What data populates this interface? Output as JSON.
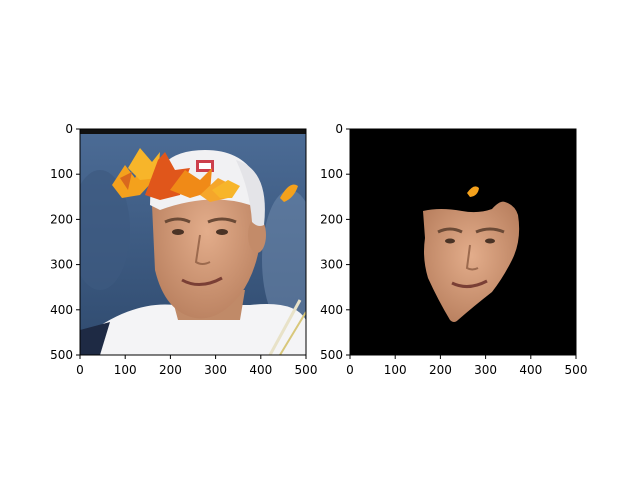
{
  "chart_data": [
    {
      "type": "image",
      "title": "",
      "xlabel": "",
      "ylabel": "",
      "xlim": [
        0,
        500
      ],
      "ylim": [
        500,
        0
      ],
      "x_ticks": [
        0,
        100,
        200,
        300,
        400,
        500
      ],
      "y_ticks": [
        0,
        100,
        200,
        300,
        400,
        500
      ],
      "x_tick_labels": [
        "0",
        "100",
        "200",
        "300",
        "400",
        "500"
      ],
      "y_tick_labels": [
        "0",
        "100",
        "200",
        "300",
        "400",
        "500"
      ],
      "content": "photo-of-man-in-white-cap-with-autumn-leaves"
    },
    {
      "type": "image",
      "title": "",
      "xlabel": "",
      "ylabel": "",
      "xlim": [
        0,
        500
      ],
      "ylim": [
        500,
        0
      ],
      "x_ticks": [
        0,
        100,
        200,
        300,
        400,
        500
      ],
      "y_ticks": [
        0,
        100,
        200,
        300,
        400,
        500
      ],
      "x_tick_labels": [
        "0",
        "100",
        "200",
        "300",
        "400",
        "500"
      ],
      "y_tick_labels": [
        "0",
        "100",
        "200",
        "300",
        "400",
        "500"
      ],
      "content": "face-segmentation-mask-on-black"
    }
  ],
  "colors": {
    "axis": "#000000",
    "mask_background": "#000000",
    "sky": "#5f7fa6",
    "cap": "#f2f2f2",
    "skin": "#d9a07e",
    "leaf_orange": "#f19a1a",
    "leaf_red": "#e0561b"
  }
}
